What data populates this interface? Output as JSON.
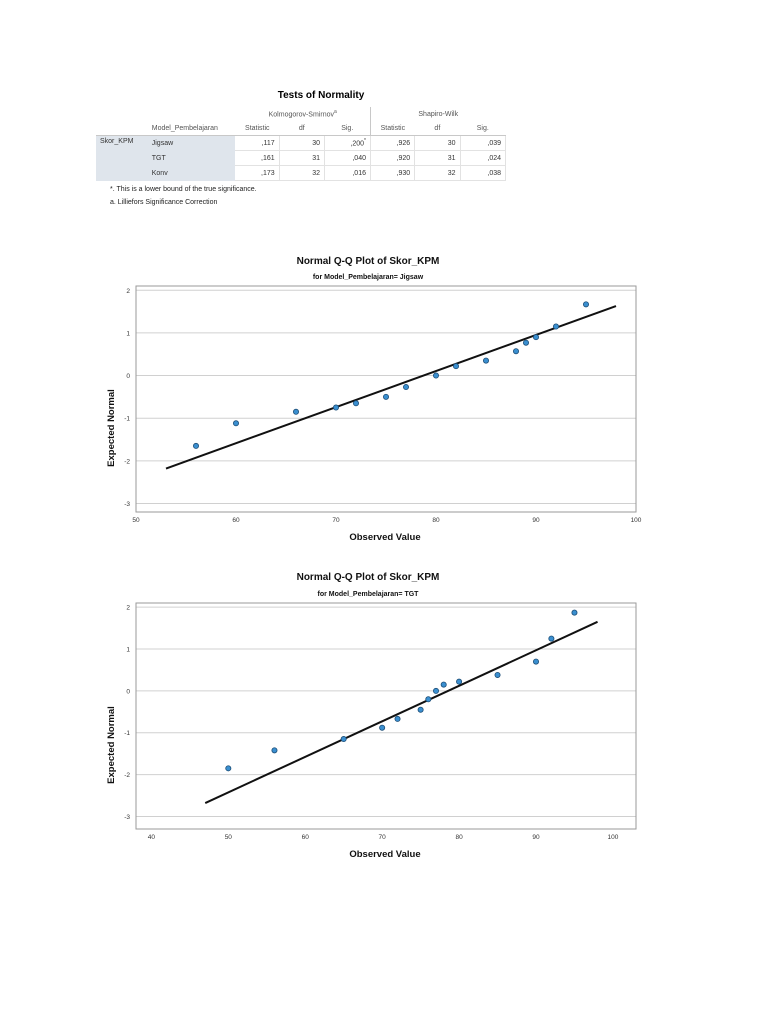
{
  "table": {
    "title": "Tests of Normality",
    "groups": {
      "ks": "Kolmogorov-Smirnov",
      "ks_sup": "a",
      "sw": "Shapiro-Wilk"
    },
    "factor_header": "Model_Pembelajaran",
    "variable": "Skor_KPM",
    "col_headers": [
      "Statistic",
      "df",
      "Sig.",
      "Statistic",
      "df",
      "Sig."
    ],
    "rows": [
      {
        "label": "Jigsaw",
        "ks_stat": ",117",
        "ks_df": "30",
        "ks_sig": ",200",
        "ks_sig_sup": "*",
        "sw_stat": ",926",
        "sw_df": "30",
        "sw_sig": ",039"
      },
      {
        "label": "TGT",
        "ks_stat": ",161",
        "ks_df": "31",
        "ks_sig": ",040",
        "ks_sig_sup": "",
        "sw_stat": ",920",
        "sw_df": "31",
        "sw_sig": ",024"
      },
      {
        "label": "Konv",
        "ks_stat": ",173",
        "ks_df": "32",
        "ks_sig": ",016",
        "ks_sig_sup": "",
        "sw_stat": ",930",
        "sw_df": "32",
        "sw_sig": ",038"
      }
    ],
    "footnotes": [
      "*. This is a lower bound of the true significance.",
      "a. Lilliefors Significance Correction"
    ]
  },
  "chart_data": [
    {
      "type": "scatter",
      "title": "Normal Q-Q Plot of Skor_KPM",
      "subtitle": "for Model_Pembelajaran= Jigsaw",
      "xlabel": "Observed Value",
      "ylabel": "Expected Normal",
      "xlim": [
        50,
        100
      ],
      "ylim": [
        -3.2,
        2.1
      ],
      "xticks": [
        50,
        60,
        70,
        80,
        90,
        100
      ],
      "yticks": [
        2,
        1,
        0,
        -1,
        -2,
        -3
      ],
      "grid": "horizontal",
      "points": [
        [
          56,
          -1.65
        ],
        [
          60,
          -1.12
        ],
        [
          66,
          -0.85
        ],
        [
          70,
          -0.75
        ],
        [
          72,
          -0.65
        ],
        [
          75,
          -0.5
        ],
        [
          77,
          -0.27
        ],
        [
          80,
          0.0
        ],
        [
          82,
          0.22
        ],
        [
          85,
          0.35
        ],
        [
          88,
          0.57
        ],
        [
          89,
          0.77
        ],
        [
          90,
          0.9
        ],
        [
          92,
          1.15
        ],
        [
          95,
          1.67
        ]
      ],
      "reference_line": [
        [
          53,
          -2.18
        ],
        [
          98,
          1.63
        ]
      ]
    },
    {
      "type": "scatter",
      "title": "Normal Q-Q Plot of Skor_KPM",
      "subtitle": "for Model_Pembelajaran= TGT",
      "xlabel": "Observed Value",
      "ylabel": "Expected Normal",
      "xlim": [
        38,
        103
      ],
      "ylim": [
        -3.3,
        2.1
      ],
      "xticks": [
        40,
        50,
        60,
        70,
        80,
        90,
        100
      ],
      "yticks": [
        2,
        1,
        0,
        -1,
        -2,
        -3
      ],
      "grid": "horizontal",
      "points": [
        [
          50,
          -1.85
        ],
        [
          56,
          -1.42
        ],
        [
          65,
          -1.15
        ],
        [
          70,
          -0.88
        ],
        [
          72,
          -0.67
        ],
        [
          75,
          -0.45
        ],
        [
          76,
          -0.2
        ],
        [
          77,
          0.0
        ],
        [
          78,
          0.15
        ],
        [
          80,
          0.22
        ],
        [
          85,
          0.38
        ],
        [
          90,
          0.7
        ],
        [
          92,
          1.25
        ],
        [
          95,
          1.87
        ]
      ],
      "reference_line": [
        [
          47,
          -2.68
        ],
        [
          98,
          1.65
        ]
      ]
    }
  ]
}
